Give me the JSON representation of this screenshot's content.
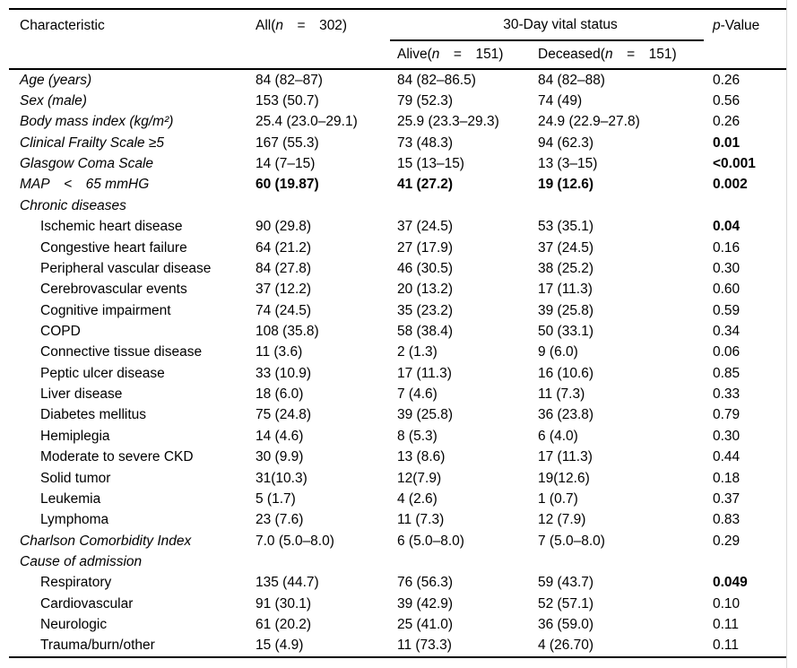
{
  "page": {
    "background": "#ffffff",
    "text_color": "#000000",
    "rule_color": "#000000",
    "edge_line_color": "#d9d9d9"
  },
  "table": {
    "header": {
      "characteristic": "Characteristic",
      "n_italic": "n",
      "all_prefix": "All(",
      "all_rest": "  =  302)",
      "group": "30-Day vital status",
      "alive_prefix": "Alive(",
      "alive_rest": "  =  151)",
      "deceased_prefix": "Deceased(",
      "deceased_rest": "  =  151)",
      "p_italic": "p",
      "p_rest": "-Value"
    },
    "rows": [
      {
        "label": "Age (years)",
        "italic": true,
        "indent": 0,
        "section": false,
        "all": "84 (82–87)",
        "alive": "84 (82–86.5)",
        "deceased": "84 (82–88)",
        "p": "0.26",
        "bold_values": false,
        "bold_p": false
      },
      {
        "label": "Sex (male)",
        "italic": true,
        "indent": 0,
        "section": false,
        "all": "153 (50.7)",
        "alive": "79 (52.3)",
        "deceased": "74 (49)",
        "p": "0.56",
        "bold_values": false,
        "bold_p": false
      },
      {
        "label": "Body mass index (kg/m²)",
        "italic": true,
        "indent": 0,
        "section": false,
        "all": "25.4 (23.0–29.1)",
        "alive": "25.9 (23.3–29.3)",
        "deceased": "24.9 (22.9–27.8)",
        "p": "0.26",
        "bold_values": false,
        "bold_p": false
      },
      {
        "label": "Clinical Frailty Scale ≥5",
        "italic": true,
        "indent": 0,
        "section": false,
        "all": "167 (55.3)",
        "alive": "73 (48.3)",
        "deceased": "94 (62.3)",
        "p": "0.01",
        "bold_values": false,
        "bold_p": true
      },
      {
        "label": "Glasgow Coma Scale",
        "italic": true,
        "indent": 0,
        "section": false,
        "all": "14 (7–15)",
        "alive": "15 (13–15)",
        "deceased": "13 (3–15)",
        "p": "<0.001",
        "bold_values": false,
        "bold_p": true
      },
      {
        "label": "MAP  <  65 mmHG",
        "italic": true,
        "indent": 0,
        "section": false,
        "all": "60 (19.87)",
        "alive": "41 (27.2)",
        "deceased": "19 (12.6)",
        "p": "0.002",
        "bold_values": true,
        "bold_p": true
      },
      {
        "label": "Chronic diseases",
        "italic": true,
        "indent": 0,
        "section": true,
        "all": "",
        "alive": "",
        "deceased": "",
        "p": "",
        "bold_values": false,
        "bold_p": false
      },
      {
        "label": "Ischemic heart disease",
        "italic": false,
        "indent": 1,
        "section": false,
        "all": "90 (29.8)",
        "alive": "37 (24.5)",
        "deceased": "53 (35.1)",
        "p": "0.04",
        "bold_values": false,
        "bold_p": true
      },
      {
        "label": "Congestive heart failure",
        "italic": false,
        "indent": 1,
        "section": false,
        "all": "64 (21.2)",
        "alive": "27 (17.9)",
        "deceased": "37 (24.5)",
        "p": "0.16",
        "bold_values": false,
        "bold_p": false
      },
      {
        "label": "Peripheral vascular disease",
        "italic": false,
        "indent": 1,
        "section": false,
        "all": "84 (27.8)",
        "alive": "46 (30.5)",
        "deceased": "38 (25.2)",
        "p": "0.30",
        "bold_values": false,
        "bold_p": false
      },
      {
        "label": "Cerebrovascular events",
        "italic": false,
        "indent": 1,
        "section": false,
        "all": "37 (12.2)",
        "alive": "20 (13.2)",
        "deceased": "17 (11.3)",
        "p": "0.60",
        "bold_values": false,
        "bold_p": false
      },
      {
        "label": "Cognitive impairment",
        "italic": false,
        "indent": 1,
        "section": false,
        "all": "74 (24.5)",
        "alive": "35 (23.2)",
        "deceased": "39 (25.8)",
        "p": "0.59",
        "bold_values": false,
        "bold_p": false
      },
      {
        "label": "COPD",
        "italic": false,
        "indent": 1,
        "section": false,
        "all": "108 (35.8)",
        "alive": "58 (38.4)",
        "deceased": "50 (33.1)",
        "p": "0.34",
        "bold_values": false,
        "bold_p": false
      },
      {
        "label": "Connective tissue disease",
        "italic": false,
        "indent": 1,
        "section": false,
        "all": "11 (3.6)",
        "alive": "2 (1.3)",
        "deceased": "9 (6.0)",
        "p": "0.06",
        "bold_values": false,
        "bold_p": false
      },
      {
        "label": "Peptic ulcer disease",
        "italic": false,
        "indent": 1,
        "section": false,
        "all": "33 (10.9)",
        "alive": "17 (11.3)",
        "deceased": "16 (10.6)",
        "p": "0.85",
        "bold_values": false,
        "bold_p": false
      },
      {
        "label": "Liver disease",
        "italic": false,
        "indent": 1,
        "section": false,
        "all": "18 (6.0)",
        "alive": "7 (4.6)",
        "deceased": "11 (7.3)",
        "p": "0.33",
        "bold_values": false,
        "bold_p": false
      },
      {
        "label": "Diabetes mellitus",
        "italic": false,
        "indent": 1,
        "section": false,
        "all": "75 (24.8)",
        "alive": "39 (25.8)",
        "deceased": "36 (23.8)",
        "p": "0.79",
        "bold_values": false,
        "bold_p": false
      },
      {
        "label": "Hemiplegia",
        "italic": false,
        "indent": 1,
        "section": false,
        "all": "14 (4.6)",
        "alive": "8 (5.3)",
        "deceased": "6 (4.0)",
        "p": "0.30",
        "bold_values": false,
        "bold_p": false
      },
      {
        "label": "Moderate to severe CKD",
        "italic": false,
        "indent": 1,
        "section": false,
        "all": "30 (9.9)",
        "alive": "13 (8.6)",
        "deceased": "17 (11.3)",
        "p": "0.44",
        "bold_values": false,
        "bold_p": false
      },
      {
        "label": "Solid tumor",
        "italic": false,
        "indent": 1,
        "section": false,
        "all": "31(10.3)",
        "alive": "12(7.9)",
        "deceased": "19(12.6)",
        "p": "0.18",
        "bold_values": false,
        "bold_p": false
      },
      {
        "label": "Leukemia",
        "italic": false,
        "indent": 1,
        "section": false,
        "all": "5 (1.7)",
        "alive": "4 (2.6)",
        "deceased": "1 (0.7)",
        "p": "0.37",
        "bold_values": false,
        "bold_p": false
      },
      {
        "label": "Lymphoma",
        "italic": false,
        "indent": 1,
        "section": false,
        "all": "23 (7.6)",
        "alive": "11 (7.3)",
        "deceased": "12 (7.9)",
        "p": "0.83",
        "bold_values": false,
        "bold_p": false
      },
      {
        "label": "Charlson Comorbidity Index",
        "italic": true,
        "indent": 0,
        "section": false,
        "all": "7.0 (5.0–8.0)",
        "alive": "6 (5.0–8.0)",
        "deceased": "7 (5.0–8.0)",
        "p": "0.29",
        "bold_values": false,
        "bold_p": false
      },
      {
        "label": "Cause of admission",
        "italic": true,
        "indent": 0,
        "section": true,
        "all": "",
        "alive": "",
        "deceased": "",
        "p": "",
        "bold_values": false,
        "bold_p": false
      },
      {
        "label": "Respiratory",
        "italic": false,
        "indent": 1,
        "section": false,
        "all": "135 (44.7)",
        "alive": "76 (56.3)",
        "deceased": "59 (43.7)",
        "p": "0.049",
        "bold_values": false,
        "bold_p": true
      },
      {
        "label": "Cardiovascular",
        "italic": false,
        "indent": 1,
        "section": false,
        "all": "91 (30.1)",
        "alive": "39 (42.9)",
        "deceased": "52 (57.1)",
        "p": "0.10",
        "bold_values": false,
        "bold_p": false
      },
      {
        "label": "Neurologic",
        "italic": false,
        "indent": 1,
        "section": false,
        "all": "61 (20.2)",
        "alive": "25 (41.0)",
        "deceased": "36 (59.0)",
        "p": "0.11",
        "bold_values": false,
        "bold_p": false
      },
      {
        "label": "Trauma/burn/other",
        "italic": false,
        "indent": 1,
        "section": false,
        "all": "15 (4.9)",
        "alive": "11 (73.3)",
        "deceased": "4 (26.70)",
        "p": "0.11",
        "bold_values": false,
        "bold_p": false
      }
    ]
  }
}
